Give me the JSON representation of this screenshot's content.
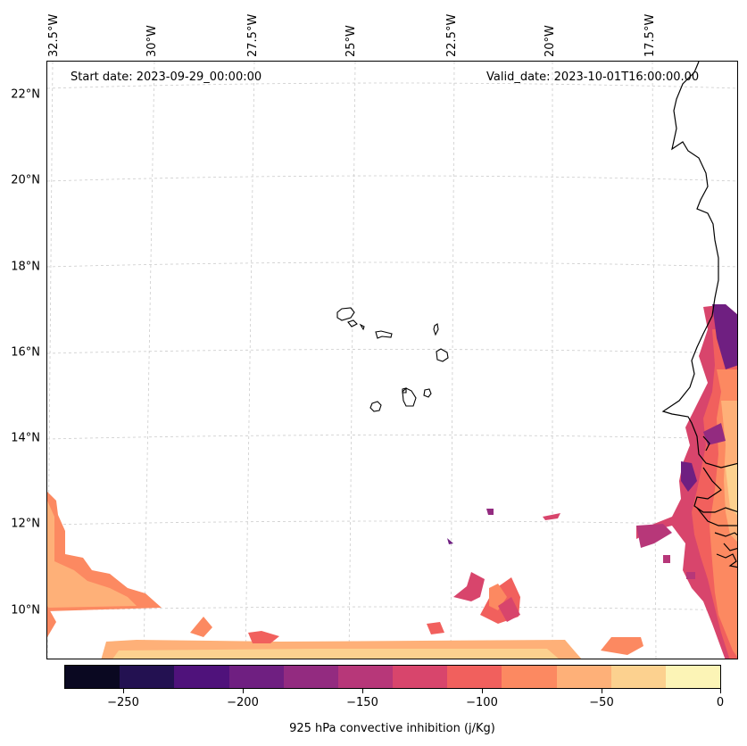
{
  "map": {
    "start_date": "Start date: 2023-09-29_00:00:00",
    "valid_date": "Valid_date: 2023-10-01T16:00:00.00",
    "lat_labels": [
      "22°N",
      "20°N",
      "18°N",
      "16°N",
      "14°N",
      "12°N",
      "10°N"
    ],
    "lon_labels": [
      "32.5°W",
      "30°W",
      "27.5°W",
      "25°W",
      "22.5°W",
      "20°W",
      "17.5°W"
    ],
    "colors": {
      "coast": "#000000",
      "grid": "#cccccc"
    }
  },
  "colorbar": {
    "title": "925 hPa convective inhibition (j/Kg)",
    "tick_labels": [
      "−250",
      "−200",
      "−150",
      "−100",
      "−50",
      "0"
    ],
    "colors": [
      "#0a0821",
      "#231151",
      "#4f127b",
      "#6f1f81",
      "#932b80",
      "#b73779",
      "#d8456c",
      "#f1605d",
      "#fc8961",
      "#feb078",
      "#fcd18f",
      "#fcf4b6"
    ]
  }
}
